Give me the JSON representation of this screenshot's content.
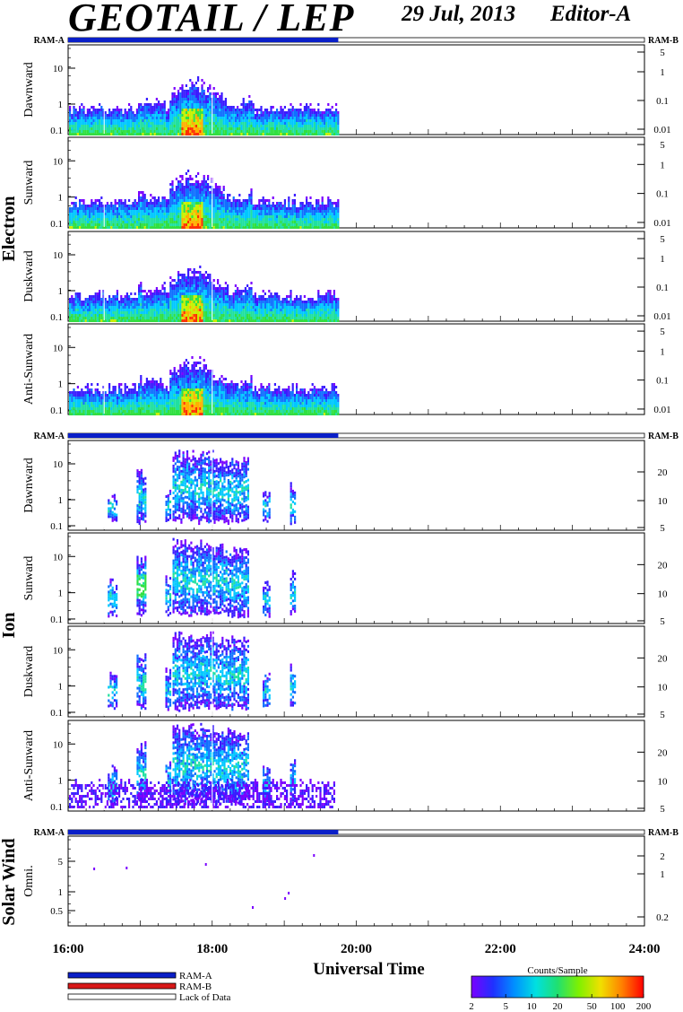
{
  "header": {
    "title": "GEOTAIL / LEP",
    "date": "29 Jul, 2013",
    "editor": "Editor-A"
  },
  "chart_data": {
    "type": "heatmap",
    "xlabel": "Universal Time",
    "x_ticks": [
      "16:00",
      "18:00",
      "20:00",
      "22:00",
      "24:00"
    ],
    "data_end": "19:45",
    "ram_labels": {
      "left": "RAM-A",
      "right": "RAM-B"
    },
    "groups": [
      {
        "name": "Electron",
        "panels": [
          {
            "name": "Dawnward",
            "yticks": [
              "10",
              "1",
              "0.1"
            ],
            "rticks": [
              "5",
              "1",
              "0.1",
              "0.01"
            ]
          },
          {
            "name": "Sunward",
            "yticks": [
              "10",
              "1",
              "0.1"
            ],
            "rticks": [
              "5",
              "1",
              "0.1",
              "0.01"
            ]
          },
          {
            "name": "Duskward",
            "yticks": [
              "10",
              "1",
              "0.1"
            ],
            "rticks": [
              "5",
              "1",
              "0.1",
              "0.01"
            ]
          },
          {
            "name": "Anti-Sunward",
            "yticks": [
              "10",
              "1",
              "0.1"
            ],
            "rticks": [
              "5",
              "1",
              "0.1",
              "0.01"
            ]
          }
        ]
      },
      {
        "name": "Ion",
        "panels": [
          {
            "name": "Dawnward",
            "yticks": [
              "10",
              "1",
              "0.1"
            ],
            "rticks": [
              "20",
              "10",
              "5"
            ]
          },
          {
            "name": "Sunward",
            "yticks": [
              "10",
              "1",
              "0.1"
            ],
            "rticks": [
              "20",
              "10",
              "5"
            ]
          },
          {
            "name": "Duskward",
            "yticks": [
              "10",
              "1",
              "0.1"
            ],
            "rticks": [
              "20",
              "10",
              "5"
            ]
          },
          {
            "name": "Anti-Sunward",
            "yticks": [
              "10",
              "1",
              "0.1"
            ],
            "rticks": [
              "20",
              "10",
              "5"
            ]
          }
        ]
      },
      {
        "name": "Solar Wind",
        "panels": [
          {
            "name": "Omni.",
            "yticks": [
              "5",
              "1",
              "0.5"
            ],
            "rticks": [
              "2",
              "1",
              "0.2"
            ]
          }
        ]
      }
    ],
    "legend": {
      "items": [
        {
          "label": "RAM-A",
          "color": "#0a1fc8"
        },
        {
          "label": "RAM-B",
          "color": "#d81818"
        },
        {
          "label": "Lack of Data",
          "color": "#ffffff"
        }
      ]
    },
    "colorbar": {
      "title": "Counts/Sample",
      "ticks": [
        "2",
        "5",
        "10",
        "20",
        "50",
        "100",
        "200"
      ]
    }
  }
}
